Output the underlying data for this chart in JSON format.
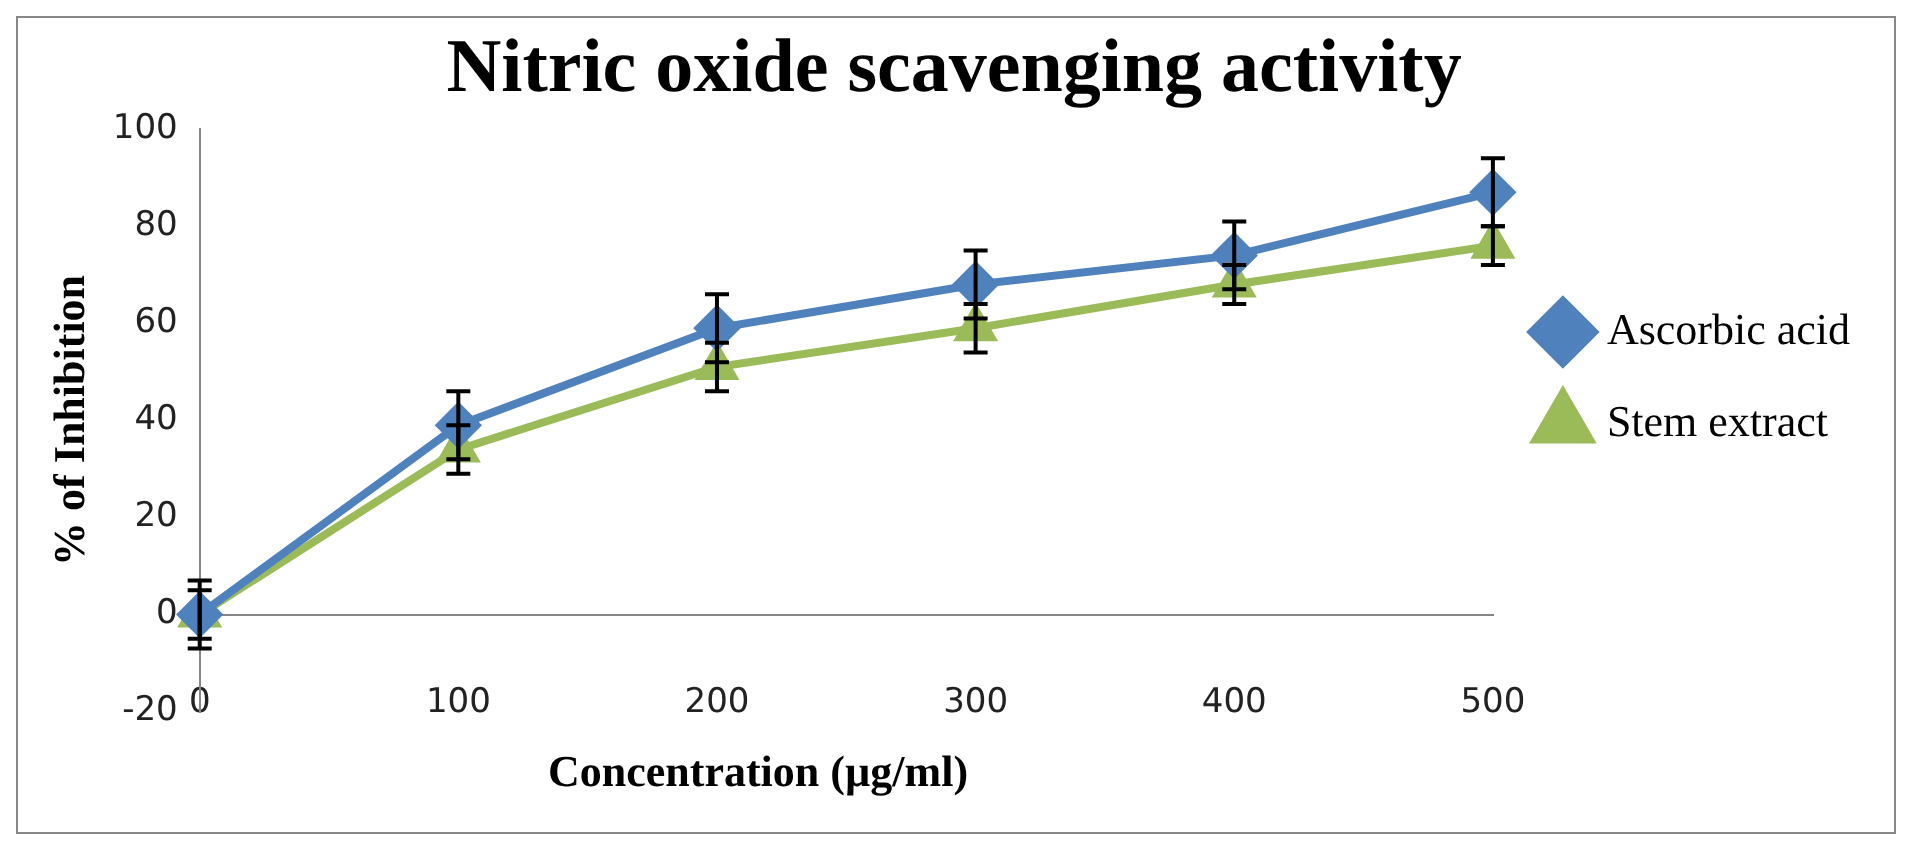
{
  "chart_data": {
    "type": "line",
    "title": "Nitric oxide scavenging activity",
    "xlabel": "Concentration (µg/ml)",
    "ylabel": "% of Inhibition",
    "categories": [
      "0",
      "100",
      "200",
      "300",
      "400",
      "500"
    ],
    "series": [
      {
        "name": "Ascorbic acid",
        "color": "#4f81bd",
        "marker": "diamond",
        "values": [
          0,
          39,
          59,
          68,
          74,
          87
        ],
        "errors": [
          7,
          7,
          7,
          7,
          7,
          7
        ]
      },
      {
        "name": "Stem extract",
        "color": "#9bbb59",
        "marker": "triangle",
        "values": [
          0,
          34,
          51,
          59,
          68,
          76
        ],
        "errors": [
          5,
          5,
          5,
          5,
          4,
          4
        ]
      }
    ],
    "ylim": [
      -20,
      100
    ],
    "yticks": [
      -20,
      0,
      20,
      40,
      60,
      80,
      100
    ],
    "grid": false,
    "legend": "right"
  }
}
